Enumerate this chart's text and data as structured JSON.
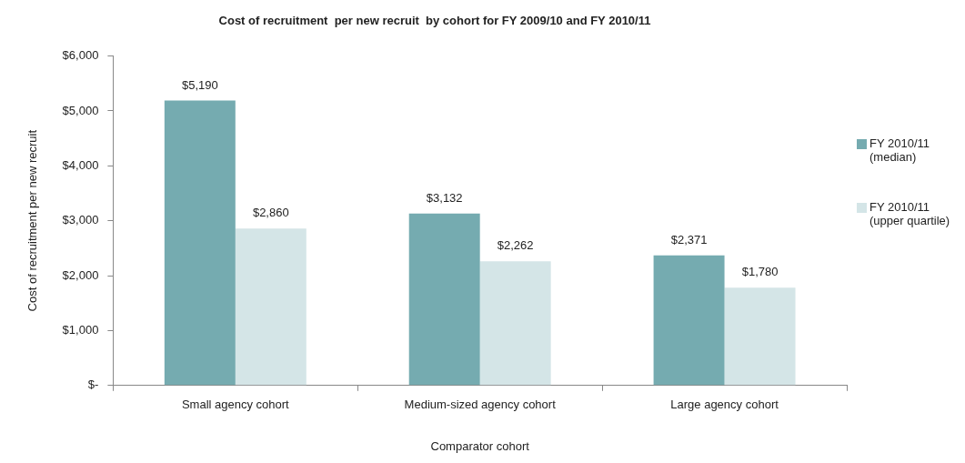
{
  "chart_data": {
    "type": "bar",
    "title": "Cost of recruitment  per new recruit  by cohort for FY 2009/10 and FY 2010/11",
    "xlabel": "Comparator cohort",
    "ylabel": "Cost of recruitment per new recruit",
    "categories": [
      "Small agency cohort",
      "Medium-sized agency cohort",
      "Large agency cohort"
    ],
    "series": [
      {
        "name": "FY 2010/11 (median)",
        "color": "#75abb0",
        "values": [
          5190,
          3132,
          2371
        ],
        "value_labels": [
          "$5,190",
          "$3,132",
          "$2,371"
        ]
      },
      {
        "name": "FY 2010/11 (upper quartile)",
        "color": "#d4e5e7",
        "values": [
          2860,
          2262,
          1780
        ],
        "value_labels": [
          "$2,860",
          "$2,262",
          "$1,780"
        ]
      }
    ],
    "ylim": [
      0,
      6000
    ],
    "yticks": [
      {
        "value": 0,
        "label": "$-"
      },
      {
        "value": 1000,
        "label": "$1,000"
      },
      {
        "value": 2000,
        "label": "$2,000"
      },
      {
        "value": 3000,
        "label": "$3,000"
      },
      {
        "value": 4000,
        "label": "$4,000"
      },
      {
        "value": 5000,
        "label": "$5,000"
      },
      {
        "value": 6000,
        "label": "$6,000"
      }
    ],
    "grid": false,
    "legend": "right"
  }
}
